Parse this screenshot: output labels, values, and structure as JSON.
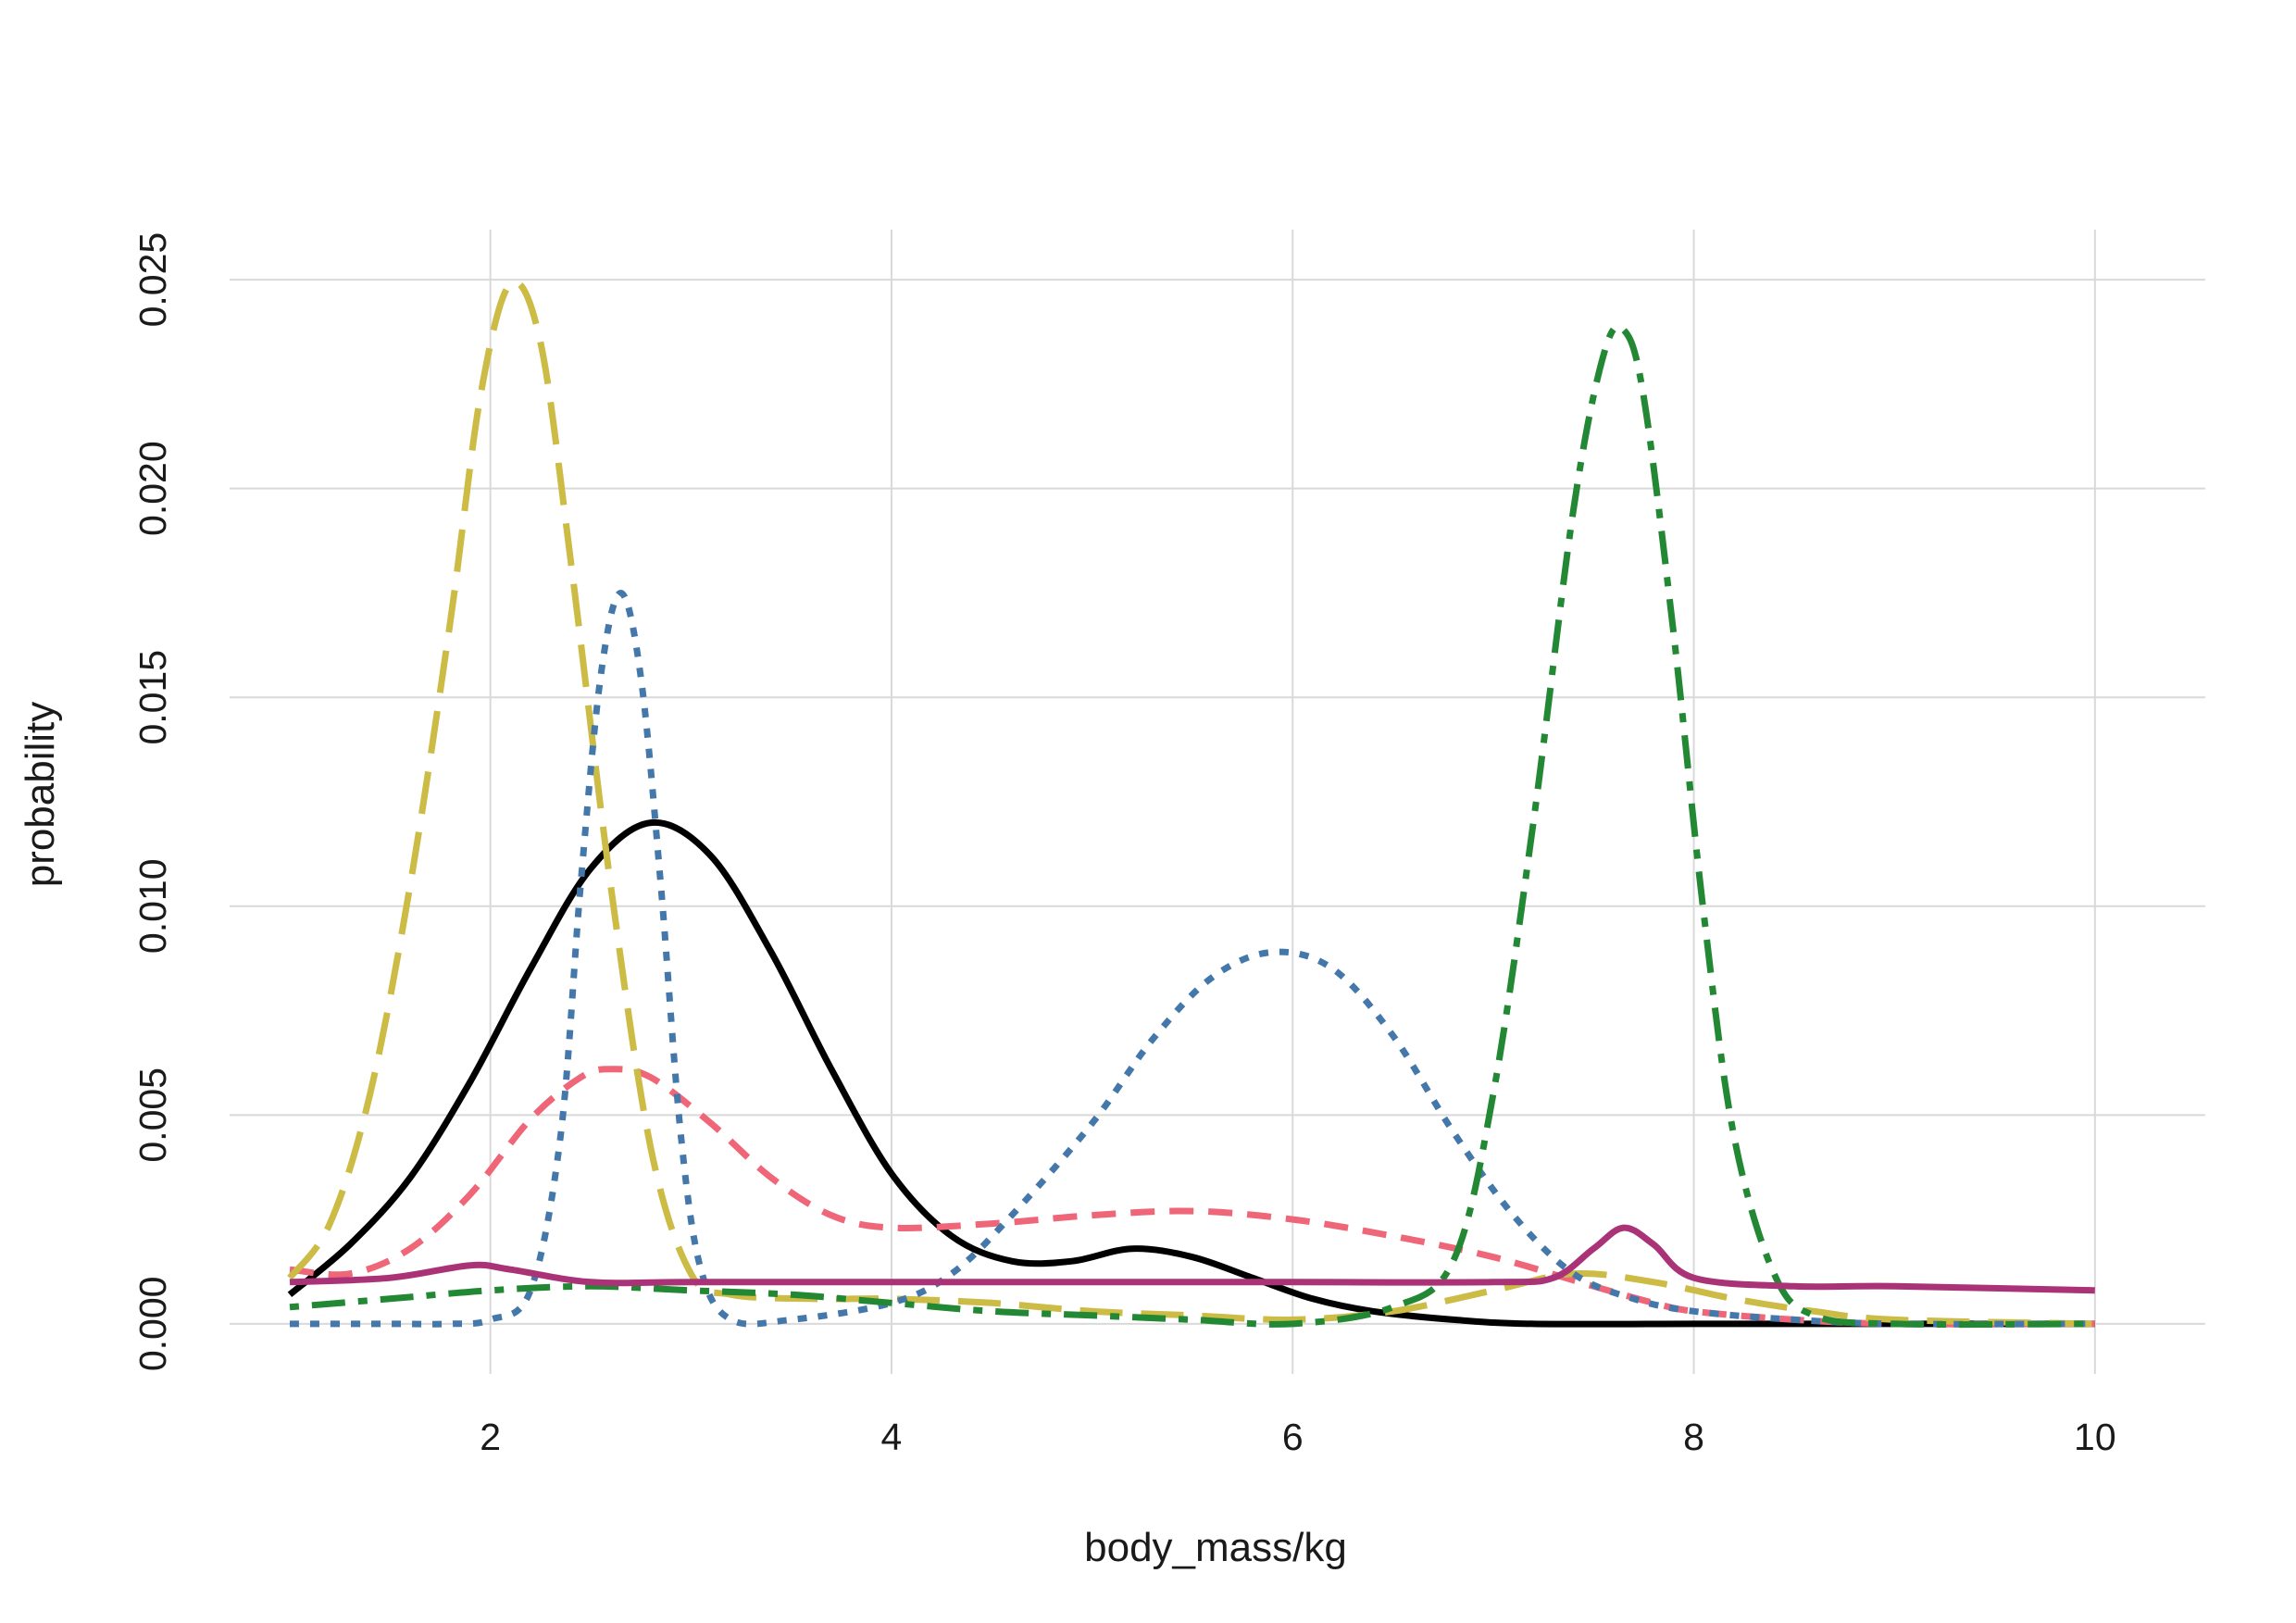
{
  "chart_data": {
    "type": "line",
    "title": "",
    "xlabel": "body_mass/kg",
    "ylabel": "probability",
    "xlim": [
      0.7,
      10.55
    ],
    "ylim": [
      -0.0012,
      0.0262
    ],
    "x_ticks": [
      2,
      4,
      6,
      8,
      10
    ],
    "x_tick_labels": [
      "2",
      "4",
      "6",
      "8",
      "10"
    ],
    "y_ticks": [
      0.0,
      0.005,
      0.01,
      0.015,
      0.02,
      0.025
    ],
    "y_tick_labels": [
      "0.000",
      "0.005",
      "0.010",
      "0.015",
      "0.020",
      "0.025"
    ],
    "grid": true,
    "legend": "none",
    "background": "#ffffff",
    "grid_color": "#d9d9d9",
    "series": [
      {
        "color": "#000000",
        "dash": "solid",
        "points": [
          [
            1.0,
            0.0007
          ],
          [
            1.3,
            0.0019
          ],
          [
            1.6,
            0.0035
          ],
          [
            1.9,
            0.0058
          ],
          [
            2.2,
            0.0085
          ],
          [
            2.5,
            0.0109
          ],
          [
            2.8,
            0.012
          ],
          [
            3.1,
            0.0112
          ],
          [
            3.4,
            0.0089
          ],
          [
            3.7,
            0.0061
          ],
          [
            4.0,
            0.0036
          ],
          [
            4.3,
            0.0021
          ],
          [
            4.6,
            0.0015
          ],
          [
            4.9,
            0.0015
          ],
          [
            5.2,
            0.0018
          ],
          [
            5.5,
            0.0016
          ],
          [
            5.8,
            0.0011
          ],
          [
            6.1,
            0.0006
          ],
          [
            6.4,
            0.0003
          ],
          [
            6.8,
            0.0001
          ],
          [
            7.2,
            0.0
          ],
          [
            8.0,
            0.0
          ],
          [
            9.0,
            0.0
          ],
          [
            10.0,
            0.0
          ]
        ]
      },
      {
        "color": "#ee6677",
        "dash": "dashed",
        "points": [
          [
            1.0,
            0.0013
          ],
          [
            1.3,
            0.0012
          ],
          [
            1.6,
            0.0018
          ],
          [
            1.9,
            0.0031
          ],
          [
            2.2,
            0.0049
          ],
          [
            2.45,
            0.0059
          ],
          [
            2.6,
            0.0061
          ],
          [
            2.8,
            0.0059
          ],
          [
            3.1,
            0.0048
          ],
          [
            3.4,
            0.0035
          ],
          [
            3.7,
            0.0026
          ],
          [
            4.0,
            0.0023
          ],
          [
            4.5,
            0.0024
          ],
          [
            5.0,
            0.0026
          ],
          [
            5.5,
            0.0027
          ],
          [
            6.0,
            0.0025
          ],
          [
            6.5,
            0.0021
          ],
          [
            7.0,
            0.0016
          ],
          [
            7.5,
            0.0009
          ],
          [
            7.8,
            0.0005
          ],
          [
            8.0,
            0.0003
          ],
          [
            8.5,
            0.0001
          ],
          [
            9.0,
            0.0
          ],
          [
            10.0,
            0.0
          ]
        ]
      },
      {
        "color": "#ccbb44",
        "dash": "longdash",
        "points": [
          [
            1.0,
            0.0011
          ],
          [
            1.2,
            0.0024
          ],
          [
            1.4,
            0.0055
          ],
          [
            1.6,
            0.0105
          ],
          [
            1.8,
            0.0168
          ],
          [
            1.95,
            0.0222
          ],
          [
            2.1,
            0.0249
          ],
          [
            2.25,
            0.0235
          ],
          [
            2.4,
            0.0183
          ],
          [
            2.6,
            0.0105
          ],
          [
            2.8,
            0.0042
          ],
          [
            3.0,
            0.0012
          ],
          [
            3.2,
            0.0007
          ],
          [
            3.6,
            0.0006
          ],
          [
            4.0,
            0.0006
          ],
          [
            4.5,
            0.0005
          ],
          [
            5.0,
            0.0003
          ],
          [
            5.5,
            0.0002
          ],
          [
            6.0,
            0.0001
          ],
          [
            6.5,
            0.0003
          ],
          [
            7.0,
            0.0008
          ],
          [
            7.4,
            0.0012
          ],
          [
            7.8,
            0.001
          ],
          [
            8.2,
            0.0006
          ],
          [
            8.6,
            0.0003
          ],
          [
            9.0,
            0.0001
          ],
          [
            10.0,
            0.0
          ]
        ]
      },
      {
        "color": "#4477aa",
        "dash": "dotted",
        "points": [
          [
            1.0,
            0.0
          ],
          [
            1.5,
            0.0
          ],
          [
            1.8,
            0.0
          ],
          [
            2.0,
            0.0001
          ],
          [
            2.2,
            0.0008
          ],
          [
            2.35,
            0.0045
          ],
          [
            2.45,
            0.0105
          ],
          [
            2.55,
            0.0155
          ],
          [
            2.65,
            0.0175
          ],
          [
            2.75,
            0.0155
          ],
          [
            2.85,
            0.0105
          ],
          [
            2.95,
            0.0045
          ],
          [
            3.05,
            0.0013
          ],
          [
            3.2,
            0.0001
          ],
          [
            3.5,
            0.0001
          ],
          [
            4.0,
            0.0005
          ],
          [
            4.3,
            0.0012
          ],
          [
            4.6,
            0.0026
          ],
          [
            5.0,
            0.0048
          ],
          [
            5.3,
            0.0068
          ],
          [
            5.6,
            0.0083
          ],
          [
            5.9,
            0.0089
          ],
          [
            6.2,
            0.0085
          ],
          [
            6.5,
            0.0069
          ],
          [
            6.8,
            0.0046
          ],
          [
            7.1,
            0.0026
          ],
          [
            7.4,
            0.0012
          ],
          [
            7.7,
            0.0006
          ],
          [
            8.0,
            0.0003
          ],
          [
            8.5,
            0.0001
          ],
          [
            9.0,
            0.0
          ],
          [
            10.0,
            0.0
          ]
        ]
      },
      {
        "color": "#228833",
        "dash": "dotdash",
        "points": [
          [
            1.0,
            0.0004
          ],
          [
            1.5,
            0.0006
          ],
          [
            2.0,
            0.0008
          ],
          [
            2.5,
            0.0009
          ],
          [
            3.0,
            0.0008
          ],
          [
            3.5,
            0.0007
          ],
          [
            4.0,
            0.0005
          ],
          [
            4.5,
            0.0003
          ],
          [
            5.0,
            0.0002
          ],
          [
            5.5,
            0.0001
          ],
          [
            6.0,
            0.0
          ],
          [
            6.5,
            0.0004
          ],
          [
            6.8,
            0.0015
          ],
          [
            7.0,
            0.0055
          ],
          [
            7.2,
            0.012
          ],
          [
            7.4,
            0.0195
          ],
          [
            7.55,
            0.0232
          ],
          [
            7.65,
            0.0238
          ],
          [
            7.75,
            0.0222
          ],
          [
            7.9,
            0.0165
          ],
          [
            8.05,
            0.0098
          ],
          [
            8.2,
            0.0045
          ],
          [
            8.4,
            0.0012
          ],
          [
            8.6,
            0.0002
          ],
          [
            9.0,
            0.0
          ],
          [
            10.0,
            0.0
          ]
        ]
      },
      {
        "color": "#aa3377",
        "dash": "solid",
        "points": [
          [
            1.0,
            0.001
          ],
          [
            1.5,
            0.0011
          ],
          [
            1.9,
            0.0014
          ],
          [
            2.1,
            0.0013
          ],
          [
            2.5,
            0.001
          ],
          [
            3.0,
            0.001
          ],
          [
            4.0,
            0.001
          ],
          [
            5.0,
            0.001
          ],
          [
            6.0,
            0.001
          ],
          [
            7.0,
            0.001
          ],
          [
            7.3,
            0.0011
          ],
          [
            7.5,
            0.0018
          ],
          [
            7.65,
            0.0023
          ],
          [
            7.8,
            0.0019
          ],
          [
            8.0,
            0.0011
          ],
          [
            8.5,
            0.0009
          ],
          [
            9.0,
            0.0009
          ],
          [
            10.0,
            0.0008
          ]
        ]
      }
    ]
  }
}
